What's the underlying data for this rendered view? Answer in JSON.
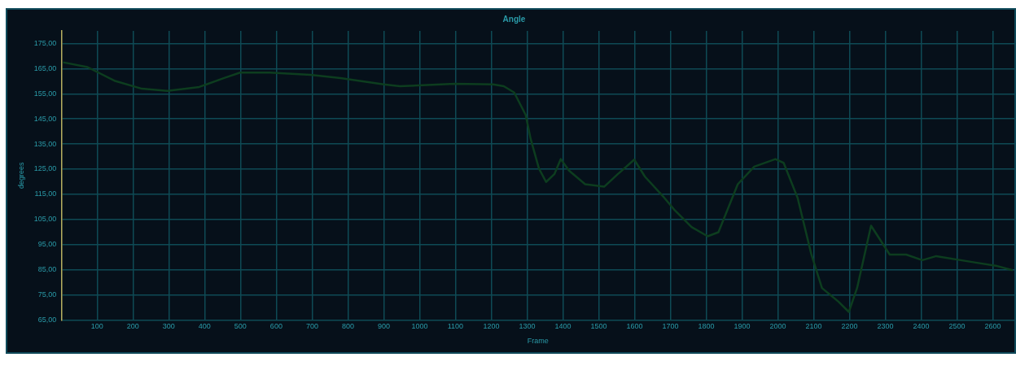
{
  "chart_data": {
    "type": "line",
    "title": "Angle",
    "xlabel": "Frame",
    "ylabel": "degrees",
    "x": [
      5,
      73,
      148,
      225,
      296,
      385,
      453,
      499,
      581,
      695,
      779,
      900,
      945,
      1098,
      1205,
      1235,
      1264,
      1296,
      1310,
      1333,
      1353,
      1376,
      1394,
      1417,
      1462,
      1515,
      1553,
      1599,
      1629,
      1683,
      1713,
      1759,
      1804,
      1834,
      1888,
      1934,
      1993,
      2016,
      2055,
      2093,
      2123,
      2169,
      2198,
      2221,
      2260,
      2312,
      2358,
      2403,
      2442,
      2549,
      2608,
      2655
    ],
    "series": [
      {
        "color": "#0d3d1f",
        "values": [
          167.5,
          165.6,
          160.2,
          157,
          156.1,
          157.7,
          161.2,
          163.4,
          163.4,
          162.5,
          161.2,
          158.7,
          158,
          159,
          158.7,
          158,
          155.5,
          146.6,
          137,
          125.3,
          119.9,
          123,
          129,
          124.4,
          119,
          118,
          123,
          128.8,
          122,
          113.6,
          108.5,
          102,
          98.3,
          99.9,
          119,
          126,
          129,
          127.5,
          113.6,
          91.3,
          77.7,
          72.3,
          68.2,
          77.7,
          102.5,
          91,
          91,
          88.8,
          90.4,
          87.9,
          86.6,
          84.8
        ]
      }
    ],
    "xlim": [
      0,
      2660
    ],
    "ylim": [
      65,
      180
    ],
    "xticks": [
      100,
      200,
      300,
      400,
      500,
      600,
      700,
      800,
      900,
      1000,
      1100,
      1200,
      1300,
      1400,
      1500,
      1600,
      1700,
      1800,
      1900,
      2000,
      2100,
      2200,
      2300,
      2400,
      2500,
      2600
    ],
    "yticks": [
      {
        "value": 65,
        "label": "65,00"
      },
      {
        "value": 75,
        "label": "75,00"
      },
      {
        "value": 85,
        "label": "85,00"
      },
      {
        "value": 95,
        "label": "95,00"
      },
      {
        "value": 105,
        "label": "105,00"
      },
      {
        "value": 115,
        "label": "115,00"
      },
      {
        "value": 125,
        "label": "125,00"
      },
      {
        "value": 135,
        "label": "135,00"
      },
      {
        "value": 145,
        "label": "145,00"
      },
      {
        "value": 155,
        "label": "155,00"
      },
      {
        "value": 165,
        "label": "165,00"
      },
      {
        "value": 175,
        "label": "175,00"
      }
    ],
    "grid": true,
    "marker": "none",
    "line_style": "solid"
  }
}
